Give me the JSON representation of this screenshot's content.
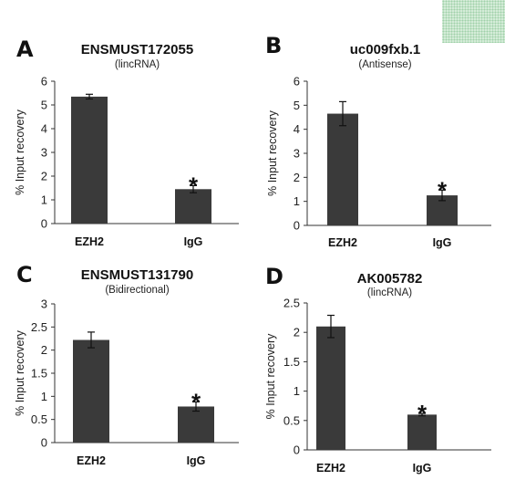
{
  "chart_data": [
    {
      "type": "bar",
      "panel_label": "A",
      "title": "ENSMUST172055",
      "subtitle": "(lincRNA)",
      "ylabel": "% Input recovery",
      "xlabel": "",
      "categories": [
        "EZH2",
        "IgG"
      ],
      "values": [
        5.35,
        1.45
      ],
      "errors": [
        0.1,
        0.15
      ],
      "significance": [
        "",
        "*"
      ],
      "ylim": [
        0,
        6
      ],
      "yticks": [
        "0",
        "1",
        "2",
        "3",
        "4",
        "5",
        "6"
      ],
      "grid": false,
      "bar_color": "#3a3a3a"
    },
    {
      "type": "bar",
      "panel_label": "B",
      "title": "uc009fxb.1",
      "subtitle": "(Antisense)",
      "ylabel": "% Input recovery",
      "xlabel": "",
      "categories": [
        "EZH2",
        "IgG"
      ],
      "values": [
        4.65,
        1.25
      ],
      "errors": [
        0.5,
        0.22
      ],
      "significance": [
        "",
        "*"
      ],
      "ylim": [
        0,
        6
      ],
      "yticks": [
        "0",
        "1",
        "2",
        "3",
        "4",
        "5",
        "6"
      ],
      "grid": false,
      "bar_color": "#3a3a3a"
    },
    {
      "type": "bar",
      "panel_label": "C",
      "title": "ENSMUST131790",
      "subtitle": "(Bidirectional)",
      "ylabel": "% Input recovery",
      "xlabel": "",
      "categories": [
        "EZH2",
        "IgG"
      ],
      "values": [
        2.22,
        0.78
      ],
      "errors": [
        0.17,
        0.1
      ],
      "significance": [
        "",
        "*"
      ],
      "ylim": [
        0,
        3
      ],
      "yticks": [
        "0",
        "0.5",
        "1",
        "1.5",
        "2",
        "2.5",
        "3"
      ],
      "grid": false,
      "bar_color": "#3a3a3a"
    },
    {
      "type": "bar",
      "panel_label": "D",
      "title": "AK005782",
      "subtitle": "(lincRNA)",
      "ylabel": "% Input recovery",
      "xlabel": "",
      "categories": [
        "EZH2",
        "IgG"
      ],
      "values": [
        2.1,
        0.6
      ],
      "errors": [
        0.19,
        0.02
      ],
      "significance": [
        "",
        "*"
      ],
      "ylim": [
        0,
        2.5
      ],
      "yticks": [
        "0",
        "0.5",
        "1",
        "1.5",
        "2",
        "2.5"
      ],
      "grid": false,
      "bar_color": "#3a3a3a"
    }
  ]
}
